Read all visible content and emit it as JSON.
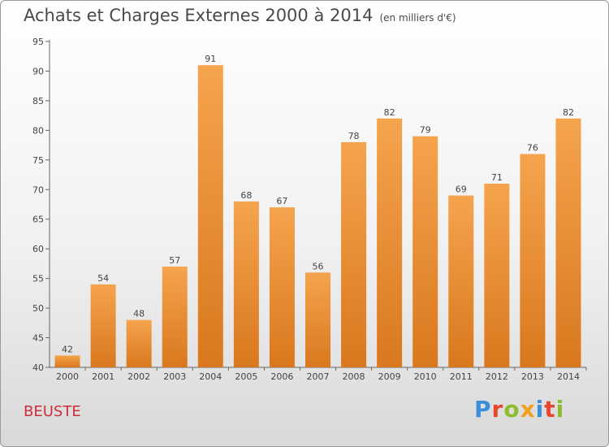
{
  "header": {
    "title": "Achats et Charges Externes 2000 à 2014",
    "unit": "(en milliers d'€)"
  },
  "footer": {
    "place": "BEUSTE",
    "brand": "Proxiti"
  },
  "colors": {
    "bar_light": "#f5a44e",
    "bar_dark": "#d9781e",
    "brand_letters": [
      "#3a8fd8",
      "#e8452e",
      "#8dbd2d",
      "#f2a01e",
      "#3a8fd8",
      "#e8452e",
      "#8dbd2d"
    ]
  },
  "chart_data": {
    "type": "bar",
    "title": "Achats et Charges Externes 2000 à 2014",
    "subtitle": "(en milliers d'€)",
    "categories": [
      "2000",
      "2001",
      "2002",
      "2003",
      "2004",
      "2005",
      "2006",
      "2007",
      "2008",
      "2009",
      "2010",
      "2011",
      "2012",
      "2013",
      "2014"
    ],
    "values": [
      42,
      54,
      48,
      57,
      91,
      68,
      67,
      56,
      78,
      82,
      79,
      69,
      71,
      76,
      82
    ],
    "ylim": [
      40,
      95
    ],
    "yticks": [
      40,
      45,
      50,
      55,
      60,
      65,
      70,
      75,
      80,
      85,
      90,
      95
    ],
    "grid": false,
    "data_labels": true
  }
}
